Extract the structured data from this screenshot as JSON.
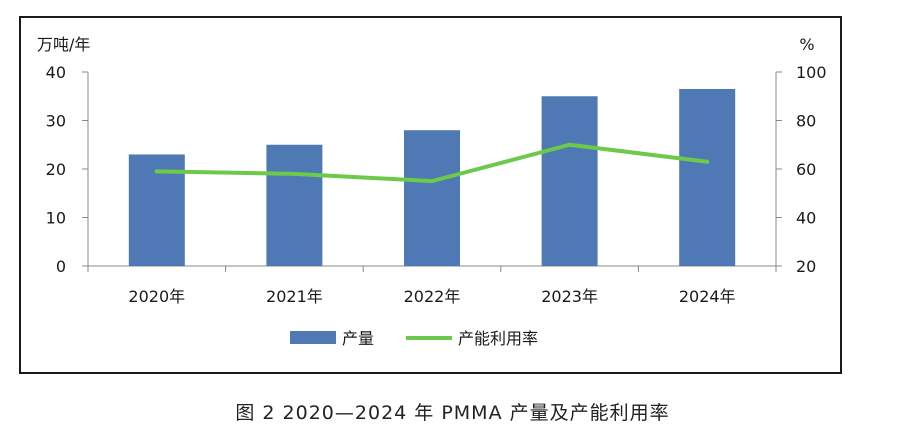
{
  "caption": "图 2 2020—2024 年 PMMA 产量及产能利用率",
  "chart_data": {
    "type": "bar",
    "title": "",
    "categories": [
      "2020年",
      "2021年",
      "2022年",
      "2023年",
      "2024年"
    ],
    "series": [
      {
        "name": "产量",
        "type": "bar",
        "axis": "left",
        "values": [
          23,
          25,
          28,
          35,
          36.5
        ]
      },
      {
        "name": "产能利用率",
        "type": "line",
        "axis": "right",
        "values": [
          59,
          58,
          55,
          70,
          63
        ]
      }
    ],
    "y_left": {
      "label": "万吨/年",
      "ylim": [
        0,
        40
      ],
      "ticks": [
        0,
        10,
        20,
        30,
        40
      ]
    },
    "y_right": {
      "label": "%",
      "ylim": [
        20,
        100
      ],
      "ticks": [
        20,
        40,
        60,
        80,
        100
      ]
    },
    "grid": false,
    "legend_position": "bottom",
    "colors": {
      "bar": "#4f79b4",
      "line": "#6cc94a",
      "axis": "#888888"
    }
  }
}
